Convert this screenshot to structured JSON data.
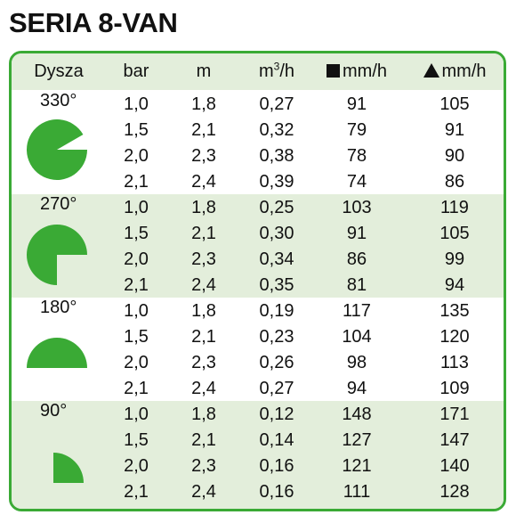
{
  "title": "SERIA 8-VAN",
  "accent_color": "#3aaa35",
  "shade_color": "#e3eedb",
  "headers": {
    "nozzle": "Dysza",
    "pressure": "bar",
    "radius": "m",
    "flow_base": "m",
    "flow_sup": "3",
    "flow_unit": "/h",
    "square_rate": "mm/h",
    "triangle_rate": "mm/h",
    "square_icon": "square-icon",
    "triangle_icon": "triangle-icon"
  },
  "groups": [
    {
      "angle": "330°",
      "icon": "sector-330-icon",
      "rows": [
        [
          "1,0",
          "1,8",
          "0,27",
          "91",
          "105"
        ],
        [
          "1,5",
          "2,1",
          "0,32",
          "79",
          "91"
        ],
        [
          "2,0",
          "2,3",
          "0,38",
          "78",
          "90"
        ],
        [
          "2,1",
          "2,4",
          "0,39",
          "74",
          "86"
        ]
      ]
    },
    {
      "angle": "270°",
      "icon": "sector-270-icon",
      "rows": [
        [
          "1,0",
          "1,8",
          "0,25",
          "103",
          "119"
        ],
        [
          "1,5",
          "2,1",
          "0,30",
          "91",
          "105"
        ],
        [
          "2,0",
          "2,3",
          "0,34",
          "86",
          "99"
        ],
        [
          "2,1",
          "2,4",
          "0,35",
          "81",
          "94"
        ]
      ]
    },
    {
      "angle": "180°",
      "icon": "sector-180-icon",
      "rows": [
        [
          "1,0",
          "1,8",
          "0,19",
          "117",
          "135"
        ],
        [
          "1,5",
          "2,1",
          "0,23",
          "104",
          "120"
        ],
        [
          "2,0",
          "2,3",
          "0,26",
          "98",
          "113"
        ],
        [
          "2,1",
          "2,4",
          "0,27",
          "94",
          "109"
        ]
      ]
    },
    {
      "angle": "90°",
      "icon": "sector-90-icon",
      "rows": [
        [
          "1,0",
          "1,8",
          "0,12",
          "148",
          "171"
        ],
        [
          "1,5",
          "2,1",
          "0,14",
          "127",
          "147"
        ],
        [
          "2,0",
          "2,3",
          "0,16",
          "121",
          "140"
        ],
        [
          "2,1",
          "2,4",
          "0,16",
          "111",
          "128"
        ]
      ]
    }
  ]
}
